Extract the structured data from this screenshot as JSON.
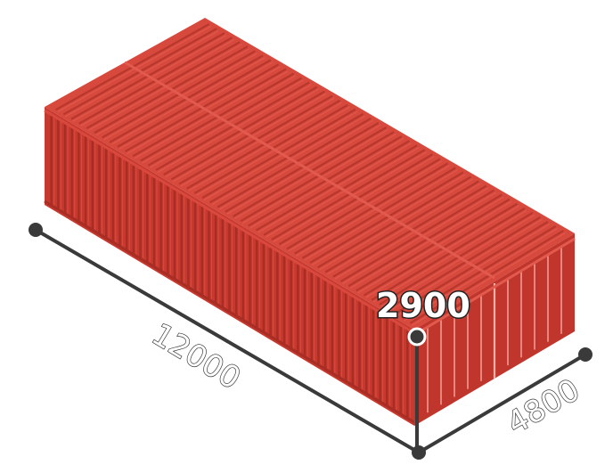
{
  "dimensions": {
    "length": "12000",
    "width": "4800",
    "height": "2900"
  },
  "colors": {
    "top_face": "#d8493d",
    "top_rib_dark": "#b8372c",
    "top_rib_light": "#e25a4e",
    "side_face": "#c6392e",
    "side_rib_dark": "#a82d24",
    "side_rib_light": "#d9483c",
    "end_face": "#c0362c",
    "end_rib_light": "#ef9a92",
    "dimension_line": "#3a3a3a"
  }
}
